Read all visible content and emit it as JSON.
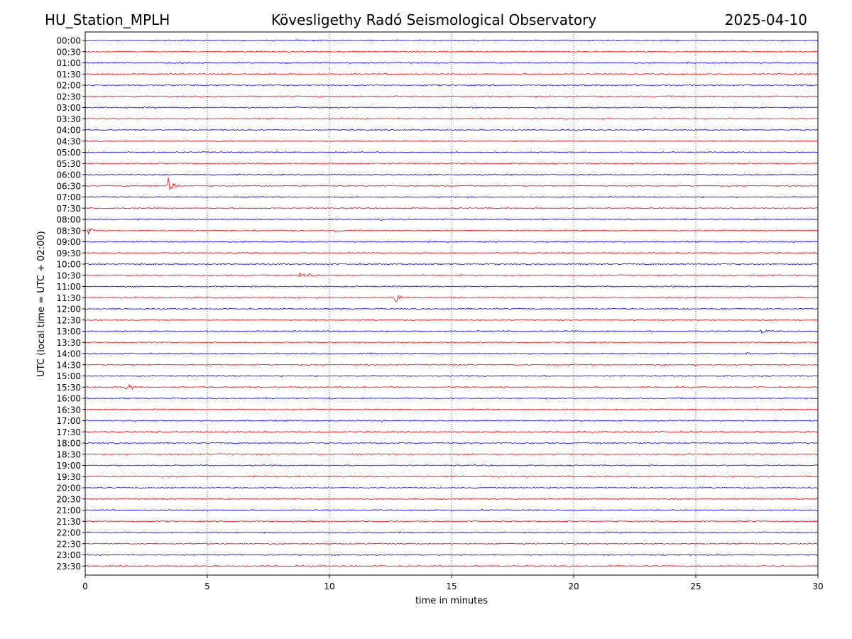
{
  "header": {
    "station": "HU_Station_MPLH",
    "title": "Kövesligethy Radó Seismological Observatory",
    "date": "2025-04-10"
  },
  "chart_data": {
    "type": "line",
    "subtype": "helicorder",
    "xlabel": "time in minutes",
    "ylabel": "UTC (local time = UTC + 02:00)",
    "xlim": [
      0,
      30
    ],
    "xticks": [
      0,
      5,
      10,
      15,
      20,
      25,
      30
    ],
    "grid": "vertical dotted lines at x ticks",
    "trace_colors": [
      "#0000ff",
      "#ff0000"
    ],
    "rows": [
      "00:00",
      "00:30",
      "01:00",
      "01:30",
      "02:00",
      "02:30",
      "03:00",
      "03:30",
      "04:00",
      "04:30",
      "05:00",
      "05:30",
      "06:00",
      "06:30",
      "07:00",
      "07:30",
      "08:00",
      "08:30",
      "09:00",
      "09:30",
      "10:00",
      "10:30",
      "11:00",
      "11:30",
      "12:00",
      "12:30",
      "13:00",
      "13:30",
      "14:00",
      "14:30",
      "15:00",
      "15:30",
      "16:00",
      "16:30",
      "17:00",
      "17:30",
      "18:00",
      "18:30",
      "19:00",
      "19:30",
      "20:00",
      "20:30",
      "21:00",
      "21:30",
      "22:00",
      "22:30",
      "23:00",
      "23:30"
    ],
    "noise_level": 1.0,
    "events": [
      {
        "row": "03:00",
        "minute": 2.6,
        "duration_min": 0.7,
        "amplitude": 2.2
      },
      {
        "row": "06:30",
        "minute": 3.4,
        "duration_min": 0.6,
        "amplitude": 13
      },
      {
        "row": "08:00",
        "minute": 12.0,
        "duration_min": 0.8,
        "amplitude": 1.6
      },
      {
        "row": "08:30",
        "minute": 0.15,
        "duration_min": 0.5,
        "amplitude": 7
      },
      {
        "row": "08:30",
        "minute": 7.0,
        "duration_min": 0.3,
        "amplitude": 1.8
      },
      {
        "row": "08:30",
        "minute": 10.3,
        "duration_min": 0.3,
        "amplitude": 3
      },
      {
        "row": "10:30",
        "minute": 8.8,
        "duration_min": 1.2,
        "amplitude": 5
      },
      {
        "row": "11:30",
        "minute": 12.7,
        "duration_min": 0.6,
        "amplitude": 8
      },
      {
        "row": "13:00",
        "minute": 27.7,
        "duration_min": 0.6,
        "amplitude": 3.5
      },
      {
        "row": "14:00",
        "minute": 27.1,
        "duration_min": 0.6,
        "amplitude": 1.5
      },
      {
        "row": "15:30",
        "minute": 1.7,
        "duration_min": 0.5,
        "amplitude": 10
      },
      {
        "row": "16:00",
        "minute": 10.0,
        "duration_min": 0.5,
        "amplitude": 1.5
      }
    ]
  }
}
